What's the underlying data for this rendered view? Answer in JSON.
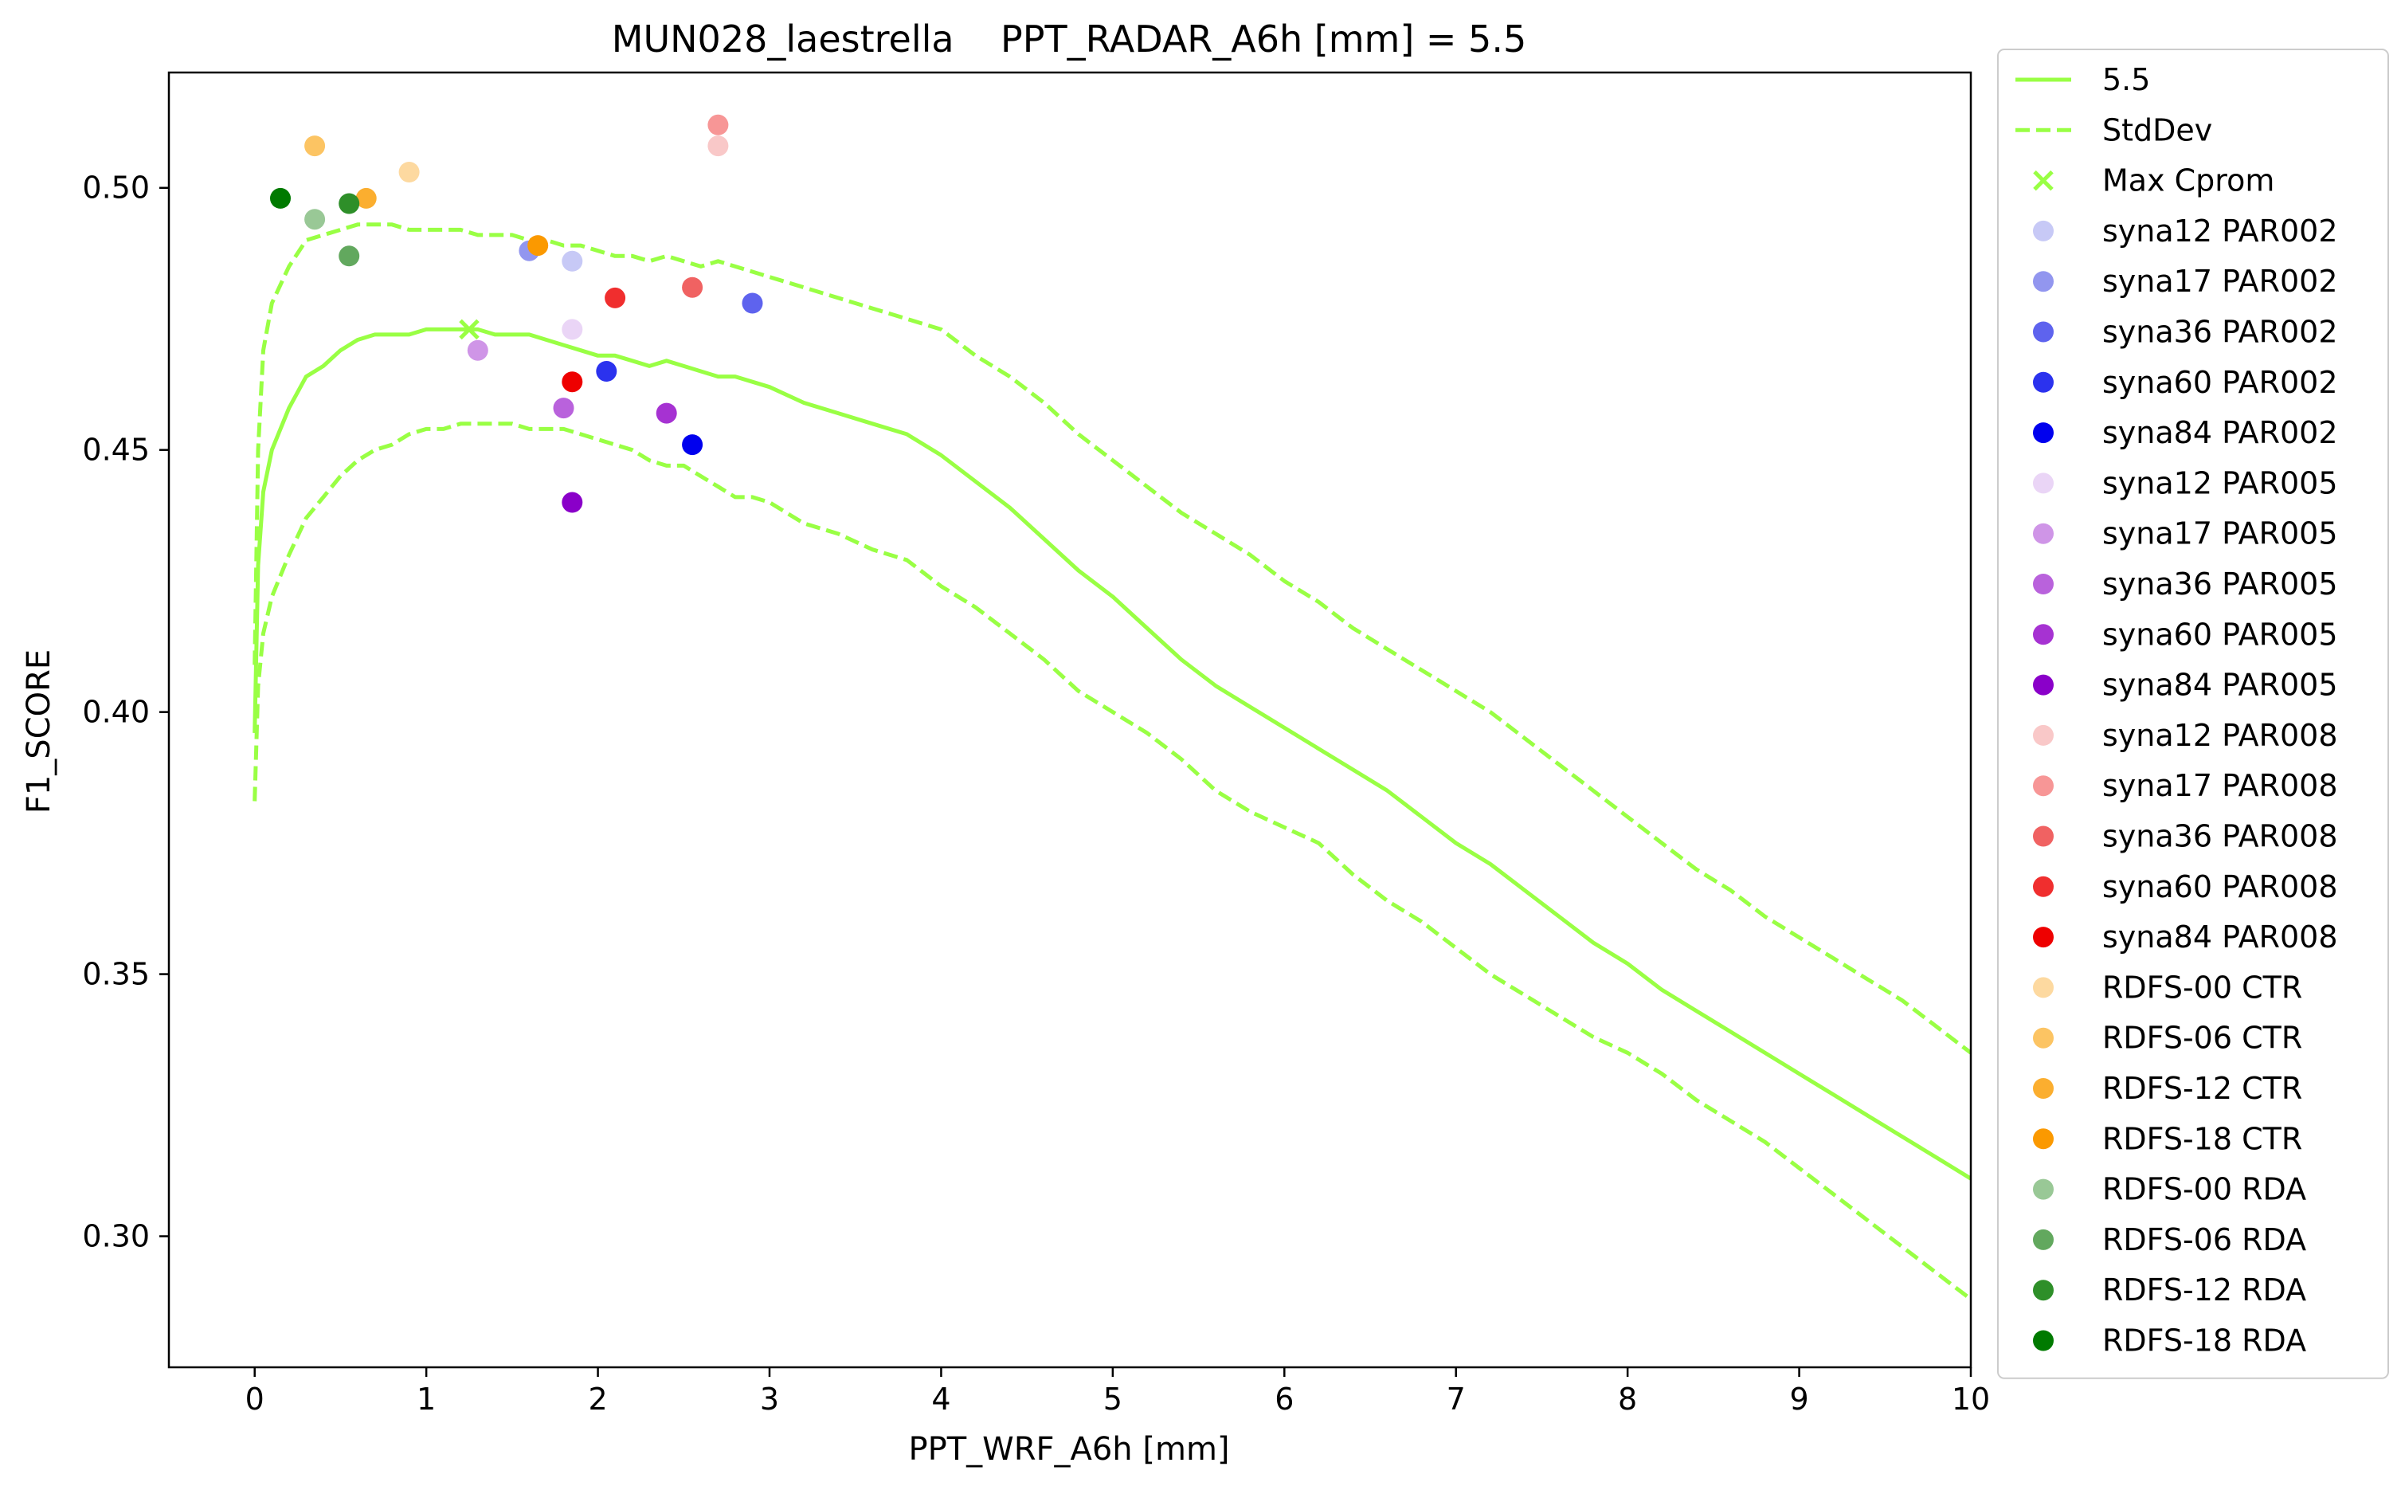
{
  "chart_data": {
    "type": "scatter",
    "title": "MUN028_laestrella    PPT_RADAR_A6h [mm] = 5.5",
    "xlabel": "PPT_WRF_A6h [mm]",
    "ylabel": "F1_SCORE",
    "xlim": [
      -0.5,
      10
    ],
    "ylim": [
      0.275,
      0.522
    ],
    "xticks": [
      0,
      1,
      2,
      3,
      4,
      5,
      6,
      7,
      8,
      9,
      10
    ],
    "yticks": [
      0.3,
      0.35,
      0.4,
      0.45,
      0.5
    ],
    "xtick_labels": [
      "0",
      "1",
      "2",
      "3",
      "4",
      "5",
      "6",
      "7",
      "8",
      "9",
      "10"
    ],
    "ytick_labels": [
      "0.30",
      "0.35",
      "0.40",
      "0.45",
      "0.50"
    ],
    "grid": false,
    "legend_position": "outside-right",
    "curve_color": "#99ff44",
    "lines": [
      {
        "name": "5.5",
        "style": "solid",
        "x": [
          0,
          0.02,
          0.05,
          0.1,
          0.2,
          0.3,
          0.4,
          0.5,
          0.6,
          0.7,
          0.8,
          0.9,
          1.0,
          1.1,
          1.2,
          1.3,
          1.4,
          1.5,
          1.6,
          1.7,
          1.8,
          1.9,
          2.0,
          2.1,
          2.2,
          2.3,
          2.4,
          2.5,
          2.6,
          2.7,
          2.8,
          2.9,
          3.0,
          3.2,
          3.4,
          3.6,
          3.8,
          4.0,
          4.2,
          4.4,
          4.6,
          4.8,
          5.0,
          5.2,
          5.4,
          5.6,
          5.8,
          6.0,
          6.2,
          6.4,
          6.6,
          6.8,
          7.0,
          7.2,
          7.4,
          7.6,
          7.8,
          8.0,
          8.2,
          8.4,
          8.6,
          8.8,
          9.0,
          9.2,
          9.4,
          9.6,
          9.8,
          10.0
        ],
        "y": [
          0.396,
          0.428,
          0.442,
          0.45,
          0.458,
          0.464,
          0.466,
          0.469,
          0.471,
          0.472,
          0.472,
          0.472,
          0.473,
          0.473,
          0.473,
          0.473,
          0.472,
          0.472,
          0.472,
          0.471,
          0.47,
          0.469,
          0.468,
          0.468,
          0.467,
          0.466,
          0.467,
          0.466,
          0.465,
          0.464,
          0.464,
          0.463,
          0.462,
          0.459,
          0.457,
          0.455,
          0.453,
          0.449,
          0.444,
          0.439,
          0.433,
          0.427,
          0.422,
          0.416,
          0.41,
          0.405,
          0.401,
          0.397,
          0.393,
          0.389,
          0.385,
          0.38,
          0.375,
          0.371,
          0.366,
          0.361,
          0.356,
          0.352,
          0.347,
          0.343,
          0.339,
          0.335,
          0.331,
          0.327,
          0.323,
          0.319,
          0.315,
          0.311
        ]
      },
      {
        "name": "StdDev",
        "style": "dashed",
        "x": [
          0,
          0.02,
          0.05,
          0.1,
          0.2,
          0.3,
          0.4,
          0.5,
          0.6,
          0.7,
          0.8,
          0.9,
          1.0,
          1.1,
          1.2,
          1.3,
          1.4,
          1.5,
          1.6,
          1.7,
          1.8,
          1.9,
          2.0,
          2.1,
          2.2,
          2.3,
          2.4,
          2.5,
          2.6,
          2.7,
          2.8,
          2.9,
          3.0,
          3.2,
          3.4,
          3.6,
          3.8,
          4.0,
          4.2,
          4.4,
          4.6,
          4.8,
          5.0,
          5.2,
          5.4,
          5.6,
          5.8,
          6.0,
          6.2,
          6.4,
          6.6,
          6.8,
          7.0,
          7.2,
          7.4,
          7.6,
          7.8,
          8.0,
          8.2,
          8.4,
          8.6,
          8.8,
          9.0,
          9.2,
          9.4,
          9.6,
          9.8,
          10.0
        ],
        "y": [
          0.409,
          0.45,
          0.469,
          0.478,
          0.485,
          0.49,
          0.491,
          0.492,
          0.493,
          0.493,
          0.493,
          0.492,
          0.492,
          0.492,
          0.492,
          0.491,
          0.491,
          0.491,
          0.49,
          0.49,
          0.489,
          0.489,
          0.488,
          0.487,
          0.487,
          0.486,
          0.487,
          0.486,
          0.485,
          0.486,
          0.485,
          0.484,
          0.483,
          0.481,
          0.479,
          0.477,
          0.475,
          0.473,
          0.468,
          0.464,
          0.459,
          0.453,
          0.448,
          0.443,
          0.438,
          0.434,
          0.43,
          0.425,
          0.421,
          0.416,
          0.412,
          0.408,
          0.404,
          0.4,
          0.395,
          0.39,
          0.385,
          0.38,
          0.375,
          0.37,
          0.366,
          0.361,
          0.357,
          0.353,
          0.349,
          0.345,
          0.34,
          0.335
        ]
      },
      {
        "name": "",
        "style": "dashed",
        "x": [
          0,
          0.02,
          0.05,
          0.1,
          0.2,
          0.3,
          0.4,
          0.5,
          0.6,
          0.7,
          0.8,
          0.9,
          1.0,
          1.1,
          1.2,
          1.3,
          1.4,
          1.5,
          1.6,
          1.7,
          1.8,
          1.9,
          2.0,
          2.1,
          2.2,
          2.3,
          2.4,
          2.5,
          2.6,
          2.7,
          2.8,
          2.9,
          3.0,
          3.2,
          3.4,
          3.6,
          3.8,
          4.0,
          4.2,
          4.4,
          4.6,
          4.8,
          5.0,
          5.2,
          5.4,
          5.6,
          5.8,
          6.0,
          6.2,
          6.4,
          6.6,
          6.8,
          7.0,
          7.2,
          7.4,
          7.6,
          7.8,
          8.0,
          8.2,
          8.4,
          8.6,
          8.8,
          9.0,
          9.2,
          9.4,
          9.6,
          9.8,
          10.0
        ],
        "y": [
          0.383,
          0.405,
          0.415,
          0.422,
          0.43,
          0.437,
          0.441,
          0.445,
          0.448,
          0.45,
          0.451,
          0.453,
          0.454,
          0.454,
          0.455,
          0.455,
          0.455,
          0.455,
          0.454,
          0.454,
          0.454,
          0.453,
          0.452,
          0.451,
          0.45,
          0.448,
          0.447,
          0.447,
          0.445,
          0.443,
          0.441,
          0.441,
          0.44,
          0.436,
          0.434,
          0.431,
          0.429,
          0.424,
          0.42,
          0.415,
          0.41,
          0.404,
          0.4,
          0.396,
          0.391,
          0.385,
          0.381,
          0.378,
          0.375,
          0.369,
          0.364,
          0.36,
          0.355,
          0.35,
          0.346,
          0.342,
          0.338,
          0.335,
          0.331,
          0.326,
          0.322,
          0.318,
          0.313,
          0.308,
          0.303,
          0.298,
          0.293,
          0.288
        ]
      }
    ],
    "max_marker": {
      "name": "Max Cprom",
      "x": 1.25,
      "y": 0.473
    },
    "series": [
      {
        "name": "syna12 PAR002",
        "color": "#c7c9f6",
        "x": 1.85,
        "y": 0.486
      },
      {
        "name": "syna17 PAR002",
        "color": "#9296ef",
        "x": 1.6,
        "y": 0.488
      },
      {
        "name": "syna36 PAR002",
        "color": "#5e63ee",
        "x": 2.9,
        "y": 0.478
      },
      {
        "name": "syna60 PAR002",
        "color": "#2b32ee",
        "x": 2.05,
        "y": 0.465
      },
      {
        "name": "syna84 PAR002",
        "color": "#0000ee",
        "x": 2.55,
        "y": 0.451
      },
      {
        "name": "syna12 PAR005",
        "color": "#ead5f6",
        "x": 1.85,
        "y": 0.473
      },
      {
        "name": "syna17 PAR005",
        "color": "#cf95e7",
        "x": 1.3,
        "y": 0.469
      },
      {
        "name": "syna36 PAR005",
        "color": "#b962dc",
        "x": 1.8,
        "y": 0.458
      },
      {
        "name": "syna60 PAR005",
        "color": "#a632d2",
        "x": 2.4,
        "y": 0.457
      },
      {
        "name": "syna84 PAR005",
        "color": "#8a00c9",
        "x": 1.85,
        "y": 0.44
      },
      {
        "name": "syna12 PAR008",
        "color": "#f9c8c8",
        "x": 2.7,
        "y": 0.508
      },
      {
        "name": "syna17 PAR008",
        "color": "#f79696",
        "x": 2.7,
        "y": 0.512
      },
      {
        "name": "syna36 PAR008",
        "color": "#f06262",
        "x": 2.55,
        "y": 0.481
      },
      {
        "name": "syna60 PAR008",
        "color": "#f02e2e",
        "x": 2.1,
        "y": 0.479
      },
      {
        "name": "syna84 PAR008",
        "color": "#ee0000",
        "x": 1.85,
        "y": 0.463
      },
      {
        "name": "RDFS-00 CTR",
        "color": "#fdd9a0",
        "x": 0.9,
        "y": 0.503
      },
      {
        "name": "RDFS-06 CTR",
        "color": "#fcc463",
        "x": 0.35,
        "y": 0.508
      },
      {
        "name": "RDFS-12 CTR",
        "color": "#fbae2f",
        "x": 0.65,
        "y": 0.498
      },
      {
        "name": "RDFS-18 CTR",
        "color": "#fb9900",
        "x": 1.65,
        "y": 0.489
      },
      {
        "name": "RDFS-00 RDA",
        "color": "#99c896",
        "x": 0.35,
        "y": 0.494
      },
      {
        "name": "RDFS-06 RDA",
        "color": "#62a85e",
        "x": 0.55,
        "y": 0.487
      },
      {
        "name": "RDFS-12 RDA",
        "color": "#2e8f29",
        "x": 0.55,
        "y": 0.497
      },
      {
        "name": "RDFS-18 RDA",
        "color": "#007a00",
        "x": 0.15,
        "y": 0.498
      }
    ]
  }
}
